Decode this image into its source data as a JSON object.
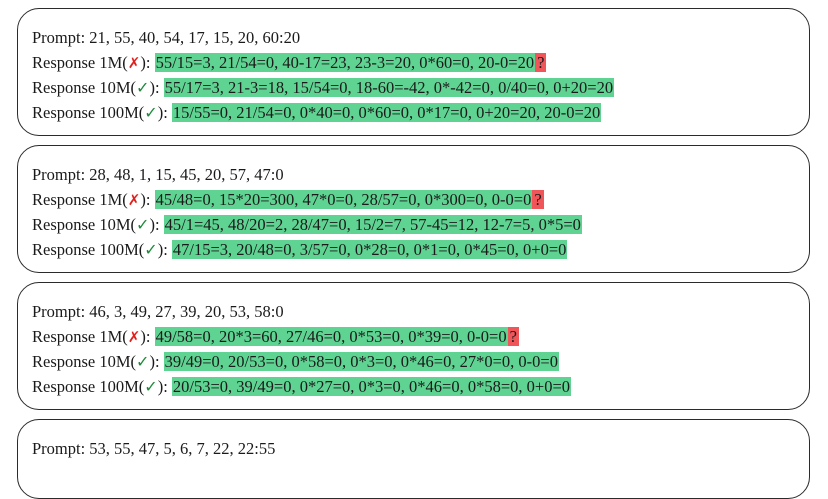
{
  "colors": {
    "correct_highlight": "#5fd492",
    "unknown_highlight": "#f0555a",
    "cross_mark": "#e0201c",
    "check_mark": "#1f8a3c"
  },
  "cards": [
    {
      "prompt": "Prompt: 21, 55, 40, 54, 17, 15, 20, 60:20",
      "responses": [
        {
          "label": "Response 1M(",
          "mark": "✗",
          "close": "):",
          "text": "55/15=3, 21/54=0, 40-17=23, 23-3=20, 0*60=0, 20-0=20",
          "flag": "?"
        },
        {
          "label": "Response 10M(",
          "mark": "✓",
          "close": "):",
          "text": "55/17=3, 21-3=18, 15/54=0, 18-60=-42, 0*-42=0, 0/40=0, 0+20=20",
          "flag": ""
        },
        {
          "label": "Response 100M(",
          "mark": "✓",
          "close": "):",
          "text": "15/55=0, 21/54=0, 0*40=0, 0*60=0, 0*17=0, 0+20=20, 20-0=20",
          "flag": ""
        }
      ]
    },
    {
      "prompt": "Prompt: 28, 48, 1, 15, 45, 20, 57, 47:0",
      "responses": [
        {
          "label": "Response 1M(",
          "mark": "✗",
          "close": "):",
          "text": "45/48=0, 15*20=300, 47*0=0, 28/57=0, 0*300=0, 0-0=0",
          "flag": "?"
        },
        {
          "label": "Response 10M(",
          "mark": "✓",
          "close": "):",
          "text": "45/1=45, 48/20=2, 28/47=0, 15/2=7, 57-45=12, 12-7=5, 0*5=0",
          "flag": ""
        },
        {
          "label": "Response 100M(",
          "mark": "✓",
          "close": "):",
          "text": "47/15=3, 20/48=0, 3/57=0, 0*28=0, 0*1=0, 0*45=0, 0+0=0",
          "flag": ""
        }
      ]
    },
    {
      "prompt": "Prompt: 46, 3, 49, 27, 39, 20, 53, 58:0",
      "responses": [
        {
          "label": "Response 1M(",
          "mark": "✗",
          "close": "):",
          "text": "49/58=0, 20*3=60, 27/46=0, 0*53=0, 0*39=0, 0-0=0",
          "flag": "?"
        },
        {
          "label": "Response 10M(",
          "mark": "✓",
          "close": "):",
          "text": "39/49=0, 20/53=0, 0*58=0, 0*3=0, 0*46=0, 27*0=0, 0-0=0",
          "flag": ""
        },
        {
          "label": "Response 100M(",
          "mark": "✓",
          "close": "):",
          "text": "20/53=0, 39/49=0, 0*27=0, 0*3=0, 0*46=0, 0*58=0, 0+0=0",
          "flag": ""
        }
      ]
    },
    {
      "prompt": "Prompt: 53, 55, 47, 5, 6, 7, 22, 22:55",
      "responses": []
    }
  ]
}
